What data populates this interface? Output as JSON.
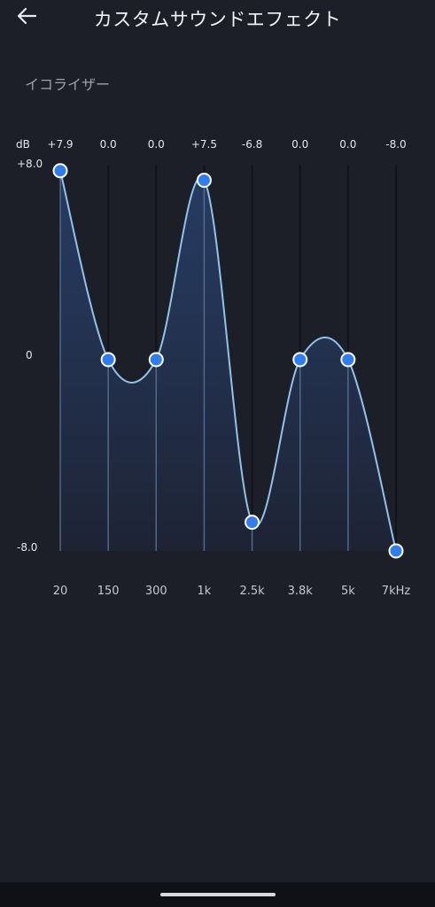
{
  "header": {
    "title": "カスタムサウンドエフェクト",
    "back_icon": "arrow-left-icon"
  },
  "section": {
    "label": "イコライザー"
  },
  "equalizer": {
    "db_label": "dB",
    "y_top_label": "+8.0",
    "y_mid_label": "0",
    "y_bottom_label": "-8.0",
    "accent_color": "#2f7df0",
    "line_color": "#8fc3ea"
  },
  "chart_data": {
    "type": "line",
    "categories": [
      "20",
      "150",
      "300",
      "1k",
      "2.5k",
      "3.8k",
      "5k",
      "7kHz"
    ],
    "value_labels": [
      "+7.9",
      "0.0",
      "0.0",
      "+7.5",
      "-6.8",
      "0.0",
      "0.0",
      "-8.0"
    ],
    "values": [
      7.9,
      0.0,
      0.0,
      7.5,
      -6.8,
      0.0,
      0.0,
      -8.0
    ],
    "ylim": [
      -8.0,
      8.0
    ],
    "ylabel": "dB"
  }
}
